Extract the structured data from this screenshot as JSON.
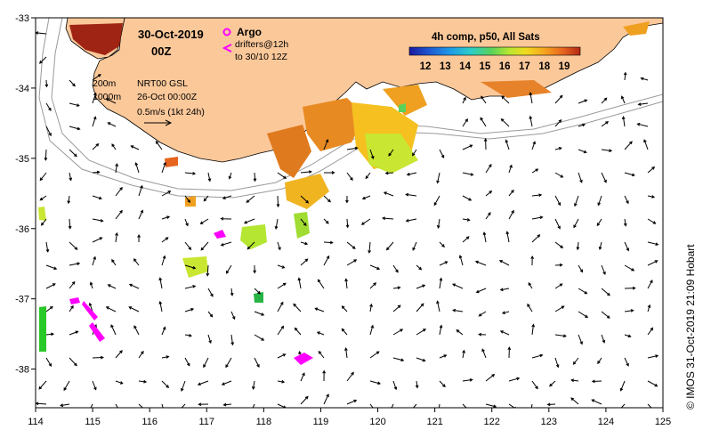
{
  "title": {
    "date": "30-Oct-2019",
    "time": "00Z"
  },
  "legend": {
    "argo": "Argo",
    "drifters_line1": "drifters@12h",
    "drifters_line2": "to 30/10 12Z",
    "contour_200": "200m",
    "contour_1000": "1000m",
    "source": "NRT00 GSL",
    "source_date": "26-Oct 00:00Z",
    "velocity_scale": "0.5m/s (1kt 24h)"
  },
  "colorbar": {
    "title": "4h comp, p50, All Sats",
    "ticks": [
      "12",
      "13",
      "14",
      "15",
      "16",
      "17",
      "18",
      "19"
    ],
    "colors": [
      "#1a1aa0",
      "#1e5ad2",
      "#1e9be6",
      "#2ccdc8",
      "#5ad25a",
      "#b4e632",
      "#f0dc1e",
      "#f5a01e",
      "#e6641e",
      "#b42814"
    ]
  },
  "axes": {
    "x_ticks": [
      "114",
      "115",
      "116",
      "117",
      "118",
      "119",
      "120",
      "121",
      "122",
      "123",
      "124",
      "125"
    ],
    "y_ticks": [
      "-33",
      "-34",
      "-35",
      "-36",
      "-37",
      "-38"
    ],
    "x_range": [
      114,
      125
    ],
    "y_range": [
      -38.55,
      -33
    ]
  },
  "colors": {
    "land": "#fbc89a",
    "argo": "#ff00ff",
    "drifter": "#ff00ff",
    "contour": "#9a9a9a"
  },
  "credit": "© IMOS 31-Oct-2019 21:09 Hobart"
}
